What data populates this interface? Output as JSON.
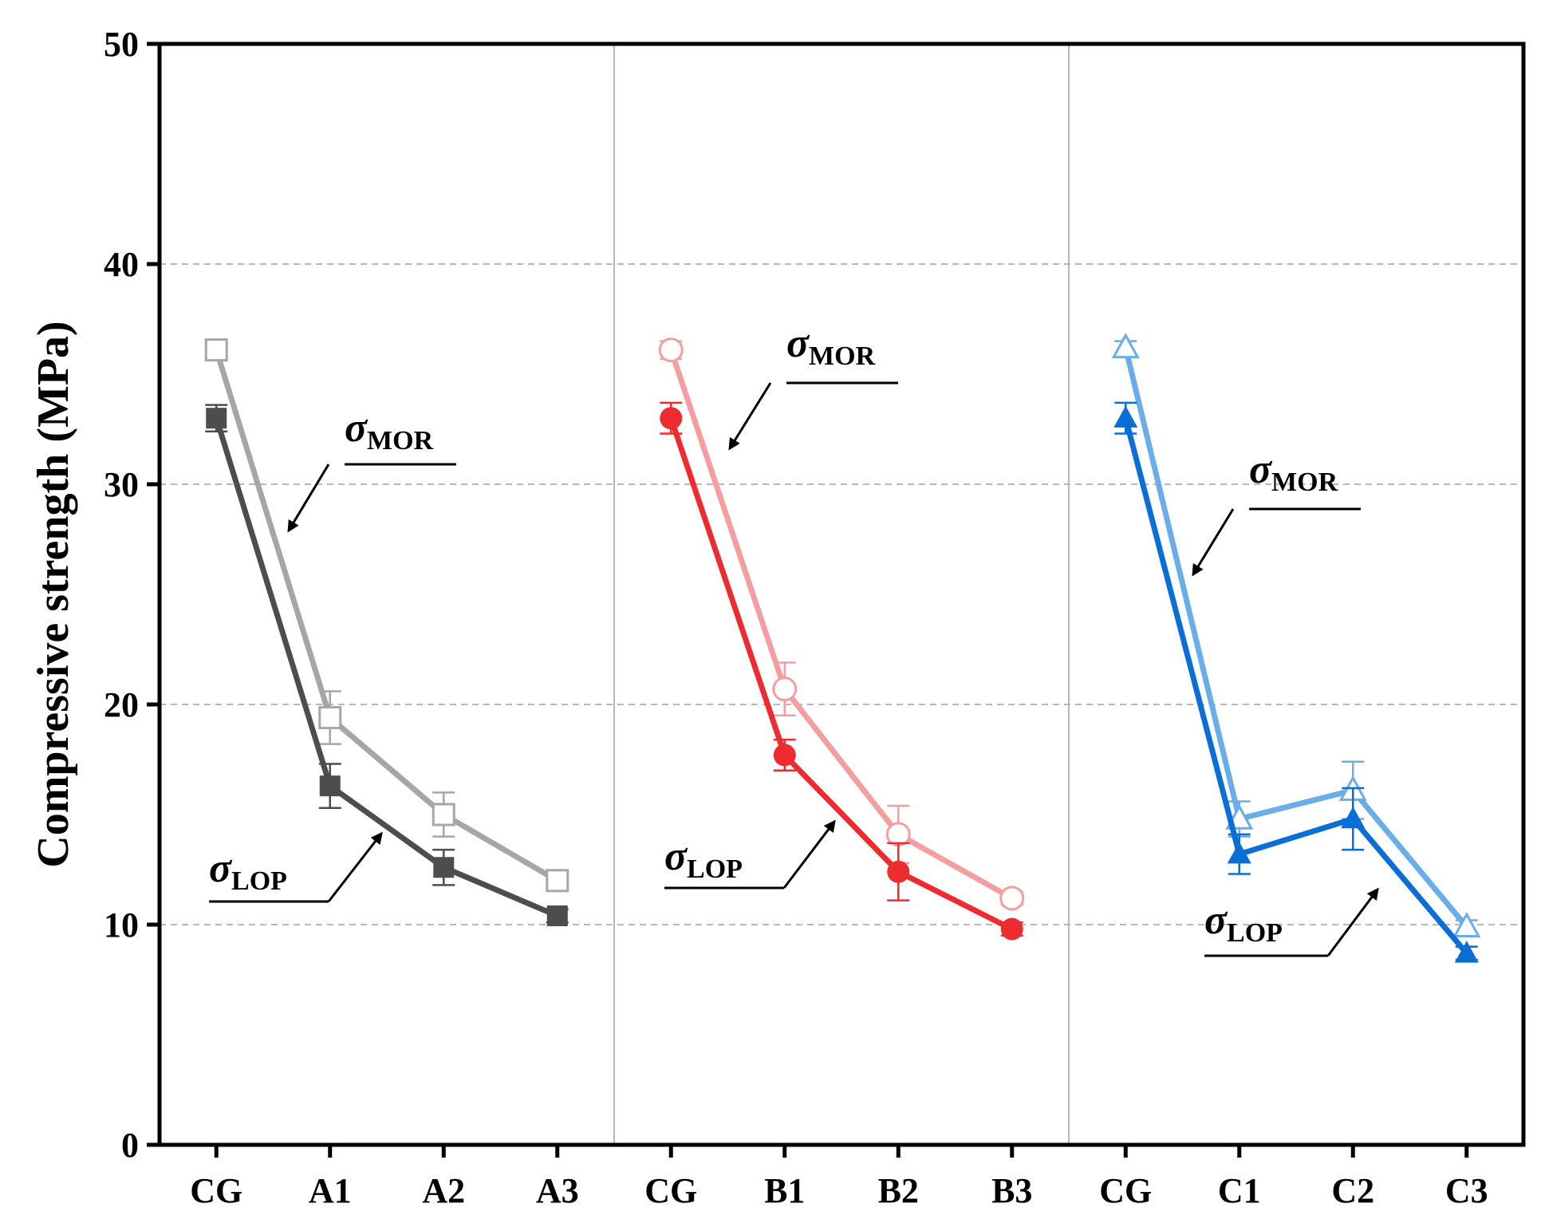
{
  "chart_data": {
    "type": "line",
    "title": "",
    "xlabel": "",
    "ylabel": "Compressive strength (MPa)",
    "ylim": [
      0,
      50
    ],
    "yticks": [
      0,
      10,
      20,
      30,
      40,
      50
    ],
    "grid": "horizontal-dashed",
    "groups": [
      {
        "categories": [
          "CG",
          "A1",
          "A2",
          "A3"
        ],
        "colors": {
          "mor": "#a6a6a6",
          "lop": "#4d4d4d"
        },
        "marker": "square",
        "series": [
          {
            "key": "mor",
            "values": [
              36.1,
              19.4,
              15.0,
              12.0
            ],
            "errors": [
              0.4,
              1.2,
              1.0,
              0.3
            ]
          },
          {
            "key": "lop",
            "values": [
              33.0,
              16.3,
              12.6,
              10.4
            ],
            "errors": [
              0.6,
              1.0,
              0.8,
              0.3
            ]
          }
        ],
        "annotations": {
          "mor": {
            "symbol": "σ",
            "subscript": "MOR"
          },
          "lop": {
            "symbol": "σ",
            "subscript": "LOP"
          }
        }
      },
      {
        "categories": [
          "CG",
          "B1",
          "B2",
          "B3"
        ],
        "colors": {
          "mor": "#f59ea0",
          "lop": "#ee2b2e"
        },
        "marker": "circle",
        "series": [
          {
            "key": "mor",
            "values": [
              36.1,
              20.7,
              14.1,
              11.2
            ],
            "errors": [
              0.4,
              1.2,
              1.3,
              0.3
            ]
          },
          {
            "key": "lop",
            "values": [
              33.0,
              17.7,
              12.4,
              9.8
            ],
            "errors": [
              0.7,
              0.7,
              1.3,
              0.3
            ]
          }
        ],
        "annotations": {
          "mor": {
            "symbol": "σ",
            "subscript": "MOR"
          },
          "lop": {
            "symbol": "σ",
            "subscript": "LOP"
          }
        }
      },
      {
        "categories": [
          "CG",
          "C1",
          "C2",
          "C3"
        ],
        "colors": {
          "mor": "#6aaee9",
          "lop": "#0a6ed6"
        },
        "marker": "triangle",
        "series": [
          {
            "key": "mor",
            "values": [
              36.2,
              14.8,
              16.1,
              9.9
            ],
            "errors": [
              0.3,
              0.8,
              1.3,
              0.3
            ]
          },
          {
            "key": "lop",
            "values": [
              33.0,
              13.2,
              14.8,
              8.7
            ],
            "errors": [
              0.7,
              0.9,
              1.4,
              0.3
            ]
          }
        ],
        "annotations": {
          "mor": {
            "symbol": "σ",
            "subscript": "MOR"
          },
          "lop": {
            "symbol": "σ",
            "subscript": "LOP"
          }
        }
      }
    ]
  }
}
